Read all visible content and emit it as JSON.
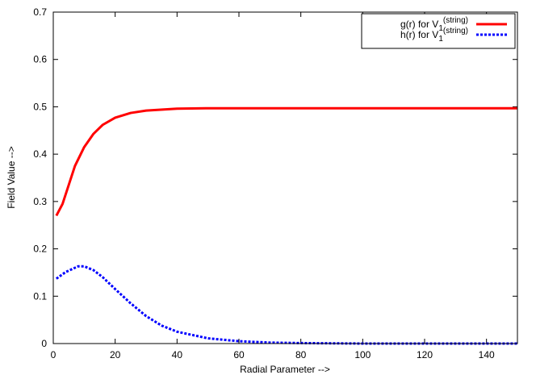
{
  "chart_data": {
    "type": "line",
    "title": "",
    "xlabel": "Radial Parameter -->",
    "ylabel": "Field Value -->",
    "xlim": [
      0,
      150
    ],
    "ylim": [
      0,
      0.7
    ],
    "xticks": [
      0,
      20,
      40,
      60,
      80,
      100,
      120,
      140
    ],
    "xtick_labels": [
      "0",
      "20",
      "40",
      "60",
      "80",
      "100",
      "120",
      "140"
    ],
    "yticks": [
      0,
      0.1,
      0.2,
      0.3,
      0.4,
      0.5,
      0.6,
      0.7
    ],
    "ytick_labels": [
      "0",
      "0.1",
      "0.2",
      "0.3",
      "0.4",
      "0.5",
      "0.6",
      "0.7"
    ],
    "grid": false,
    "legend_placement": "top-right",
    "series": [
      {
        "name_main": "g(r) for V",
        "name_sub": "1",
        "name_sup": "(string)",
        "color": "#ff0000",
        "style": "solid",
        "x": [
          1,
          3,
          5,
          7,
          10,
          13,
          16,
          20,
          25,
          30,
          40,
          50,
          60,
          150
        ],
        "y": [
          0.27,
          0.295,
          0.335,
          0.375,
          0.415,
          0.443,
          0.462,
          0.477,
          0.487,
          0.492,
          0.496,
          0.497,
          0.497,
          0.497
        ]
      },
      {
        "name_main": "h(r) for V",
        "name_sub": "1",
        "name_sup": "(string)",
        "color": "#0000ff",
        "style": "dotted",
        "x": [
          1,
          4,
          8,
          10,
          13,
          16,
          20,
          25,
          30,
          35,
          40,
          50,
          60,
          70,
          80,
          100,
          150
        ],
        "y": [
          0.137,
          0.151,
          0.163,
          0.163,
          0.155,
          0.14,
          0.115,
          0.085,
          0.058,
          0.038,
          0.025,
          0.011,
          0.005,
          0.002,
          0.001,
          0,
          0
        ]
      }
    ]
  }
}
